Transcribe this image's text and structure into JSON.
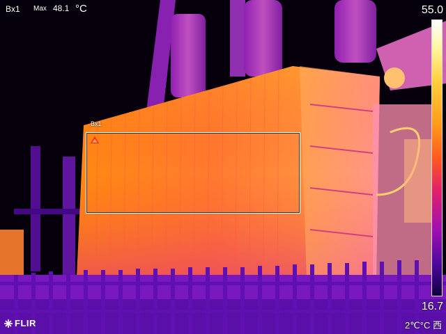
{
  "hud": {
    "meas_box": "Bx1",
    "max_label": "Max",
    "max_value": "48.1",
    "unit": "°C"
  },
  "scale": {
    "max": "55.0",
    "min": "16.7",
    "palette": "iron"
  },
  "roi": {
    "label": "Bx1"
  },
  "brand": {
    "logo_text": "FLIR"
  },
  "footer": {
    "text": "2℃°C 西"
  },
  "colors": {
    "background": "#000000",
    "hot": "#ffd040",
    "warm": "#ff9a18",
    "mid": "#e0206a",
    "cool": "#a010b0",
    "cold": "#100040"
  }
}
